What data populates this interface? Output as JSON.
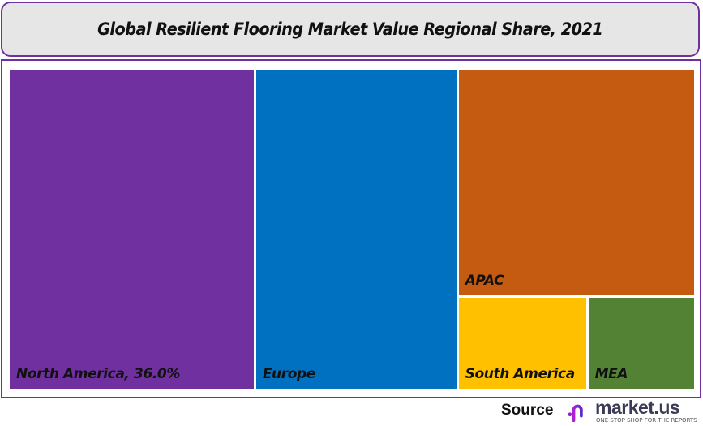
{
  "chart_data": {
    "type": "treemap",
    "title": "Global Resilient Flooring Market Value Regional Share, 2021",
    "series": [
      {
        "name": "North America",
        "label": "North America, 36.0%",
        "value": 36.0,
        "color": "#7030a0"
      },
      {
        "name": "Europe",
        "label": "Europe",
        "value": 29.6,
        "color": "#0070c0"
      },
      {
        "name": "APAC",
        "label": "APAC",
        "value": 24.6,
        "color": "#c55a11"
      },
      {
        "name": "South America",
        "label": "South America",
        "value": 5.4,
        "color": "#ffc000"
      },
      {
        "name": "MEA",
        "label": "MEA",
        "value": 4.4,
        "color": "#548235"
      }
    ]
  },
  "footer": {
    "source_label": "Source",
    "logo_text": "market.us",
    "logo_tagline": "ONE STOP SHOP FOR THE REPORTS"
  },
  "colors": {
    "frame": "#7030a0",
    "title_bg": "#e7e6e6"
  }
}
